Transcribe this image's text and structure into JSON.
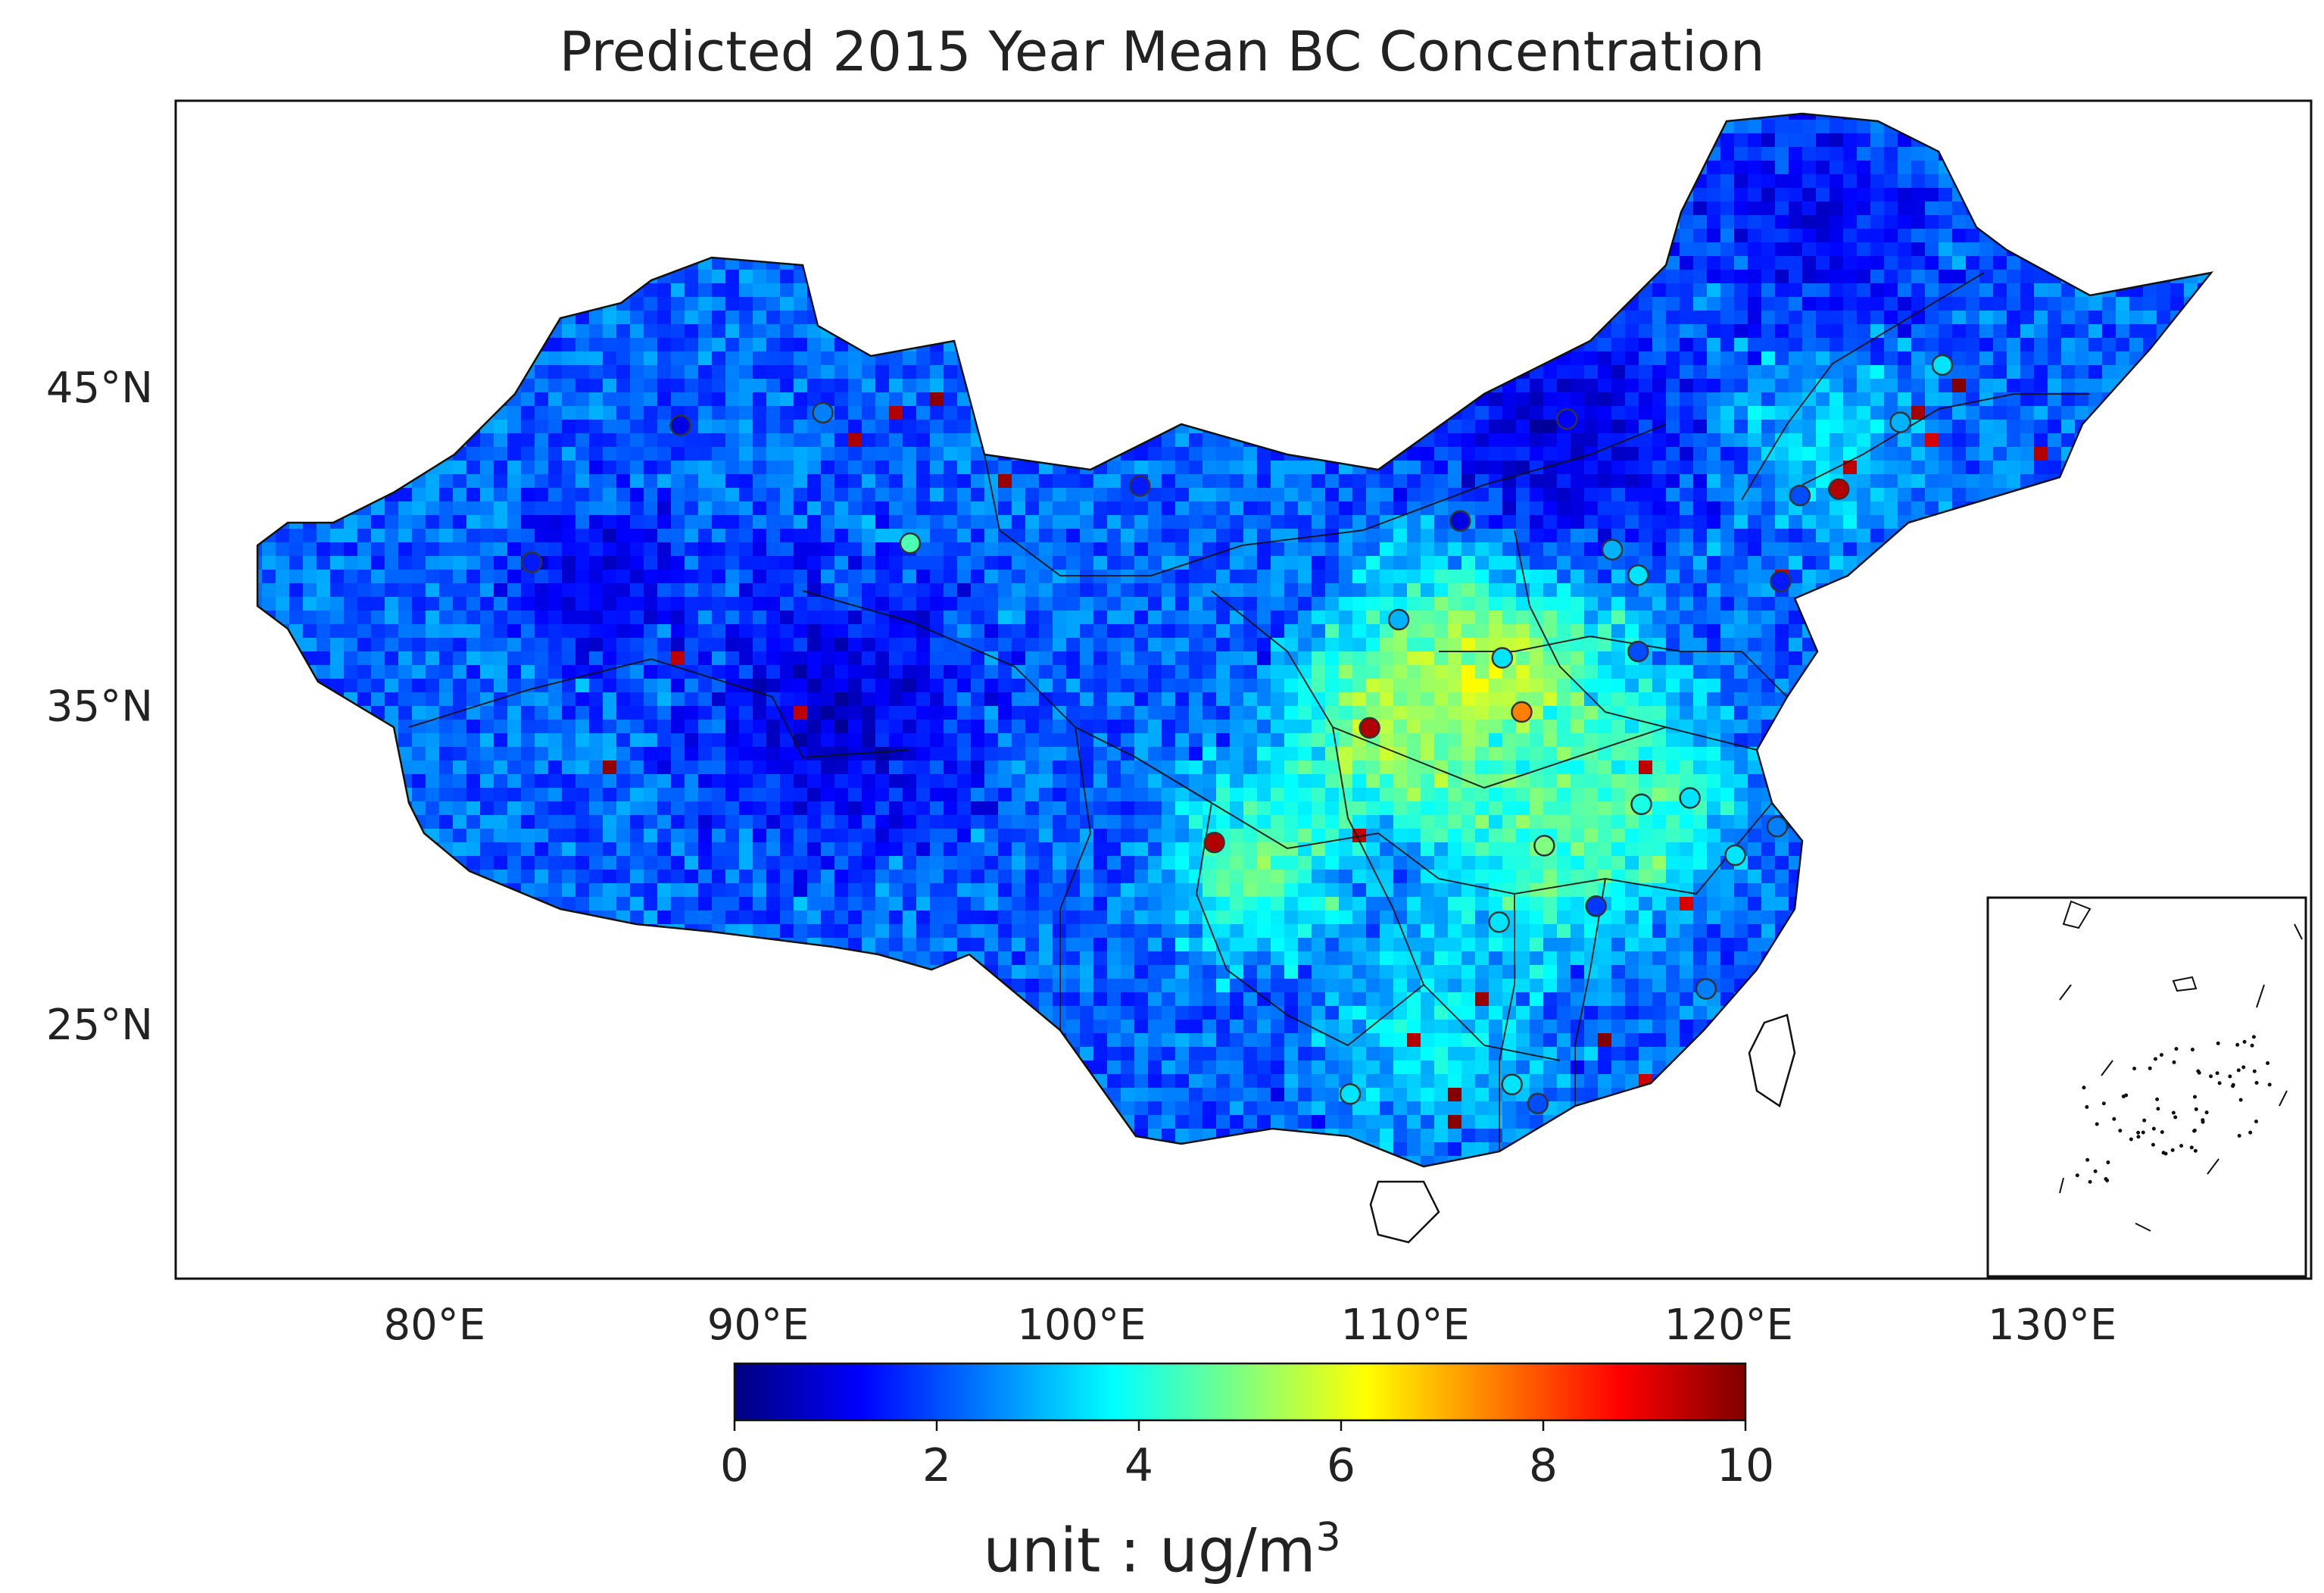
{
  "title": "Predicted 2015 Year Mean BC Concentration",
  "chart_data": {
    "type": "map-heatmap",
    "region": "China",
    "variable": "BC Concentration",
    "year": 2015,
    "lon_ticks": [
      "80°E",
      "90°E",
      "100°E",
      "110°E",
      "120°E",
      "130°E"
    ],
    "lon_values": [
      80,
      90,
      100,
      110,
      120,
      130
    ],
    "lat_ticks": [
      "45°N",
      "35°N",
      "25°N"
    ],
    "lat_values": [
      45,
      35,
      25
    ],
    "lon_range": [
      72,
      138
    ],
    "lat_range": [
      17,
      54
    ],
    "colorbar": {
      "ticks": [
        "0",
        "2",
        "4",
        "6",
        "8",
        "10"
      ],
      "min": 0,
      "max": 10,
      "colormap": [
        "#00007f",
        "#0000ff",
        "#007fff",
        "#00ffff",
        "#7fff7f",
        "#ffff00",
        "#ff7f00",
        "#ff0000",
        "#7f0000"
      ],
      "unit_text": "unit : ug/m",
      "unit_exp": "3"
    },
    "stations": [
      {
        "lon": 87.6,
        "lat": 43.8,
        "value": 1.0
      },
      {
        "lon": 83.0,
        "lat": 39.5,
        "value": 1.5
      },
      {
        "lon": 92.0,
        "lat": 44.2,
        "value": 2.5
      },
      {
        "lon": 94.7,
        "lat": 40.1,
        "value": 4.5
      },
      {
        "lon": 101.8,
        "lat": 41.9,
        "value": 1.5
      },
      {
        "lon": 109.8,
        "lat": 37.7,
        "value": 3.0
      },
      {
        "lon": 108.9,
        "lat": 34.3,
        "value": 9.5
      },
      {
        "lon": 104.1,
        "lat": 30.7,
        "value": 9.5
      },
      {
        "lon": 113.6,
        "lat": 34.8,
        "value": 7.5
      },
      {
        "lon": 113.0,
        "lat": 36.5,
        "value": 3.5
      },
      {
        "lon": 117.2,
        "lat": 36.7,
        "value": 2.0
      },
      {
        "lon": 114.3,
        "lat": 30.6,
        "value": 5.0
      },
      {
        "lon": 112.9,
        "lat": 28.2,
        "value": 3.5
      },
      {
        "lon": 115.9,
        "lat": 28.7,
        "value": 1.8
      },
      {
        "lon": 117.3,
        "lat": 31.9,
        "value": 4.0
      },
      {
        "lon": 118.8,
        "lat": 32.1,
        "value": 3.5
      },
      {
        "lon": 120.2,
        "lat": 30.3,
        "value": 3.5
      },
      {
        "lon": 121.5,
        "lat": 31.2,
        "value": 2.5
      },
      {
        "lon": 119.3,
        "lat": 26.1,
        "value": 2.5
      },
      {
        "lon": 108.3,
        "lat": 22.8,
        "value": 3.5
      },
      {
        "lon": 113.3,
        "lat": 23.1,
        "value": 3.5
      },
      {
        "lon": 114.1,
        "lat": 22.5,
        "value": 2.0
      },
      {
        "lon": 121.6,
        "lat": 38.9,
        "value": 1.5
      },
      {
        "lon": 123.4,
        "lat": 41.8,
        "value": 9.5
      },
      {
        "lon": 122.2,
        "lat": 41.6,
        "value": 2.0
      },
      {
        "lon": 125.3,
        "lat": 43.9,
        "value": 3.0
      },
      {
        "lon": 126.6,
        "lat": 45.7,
        "value": 3.5
      },
      {
        "lon": 116.4,
        "lat": 39.9,
        "value": 3.0
      },
      {
        "lon": 117.2,
        "lat": 39.1,
        "value": 3.5
      },
      {
        "lon": 111.7,
        "lat": 40.8,
        "value": 1.0
      },
      {
        "lon": 115.0,
        "lat": 44.0,
        "value": 1.2
      }
    ]
  }
}
